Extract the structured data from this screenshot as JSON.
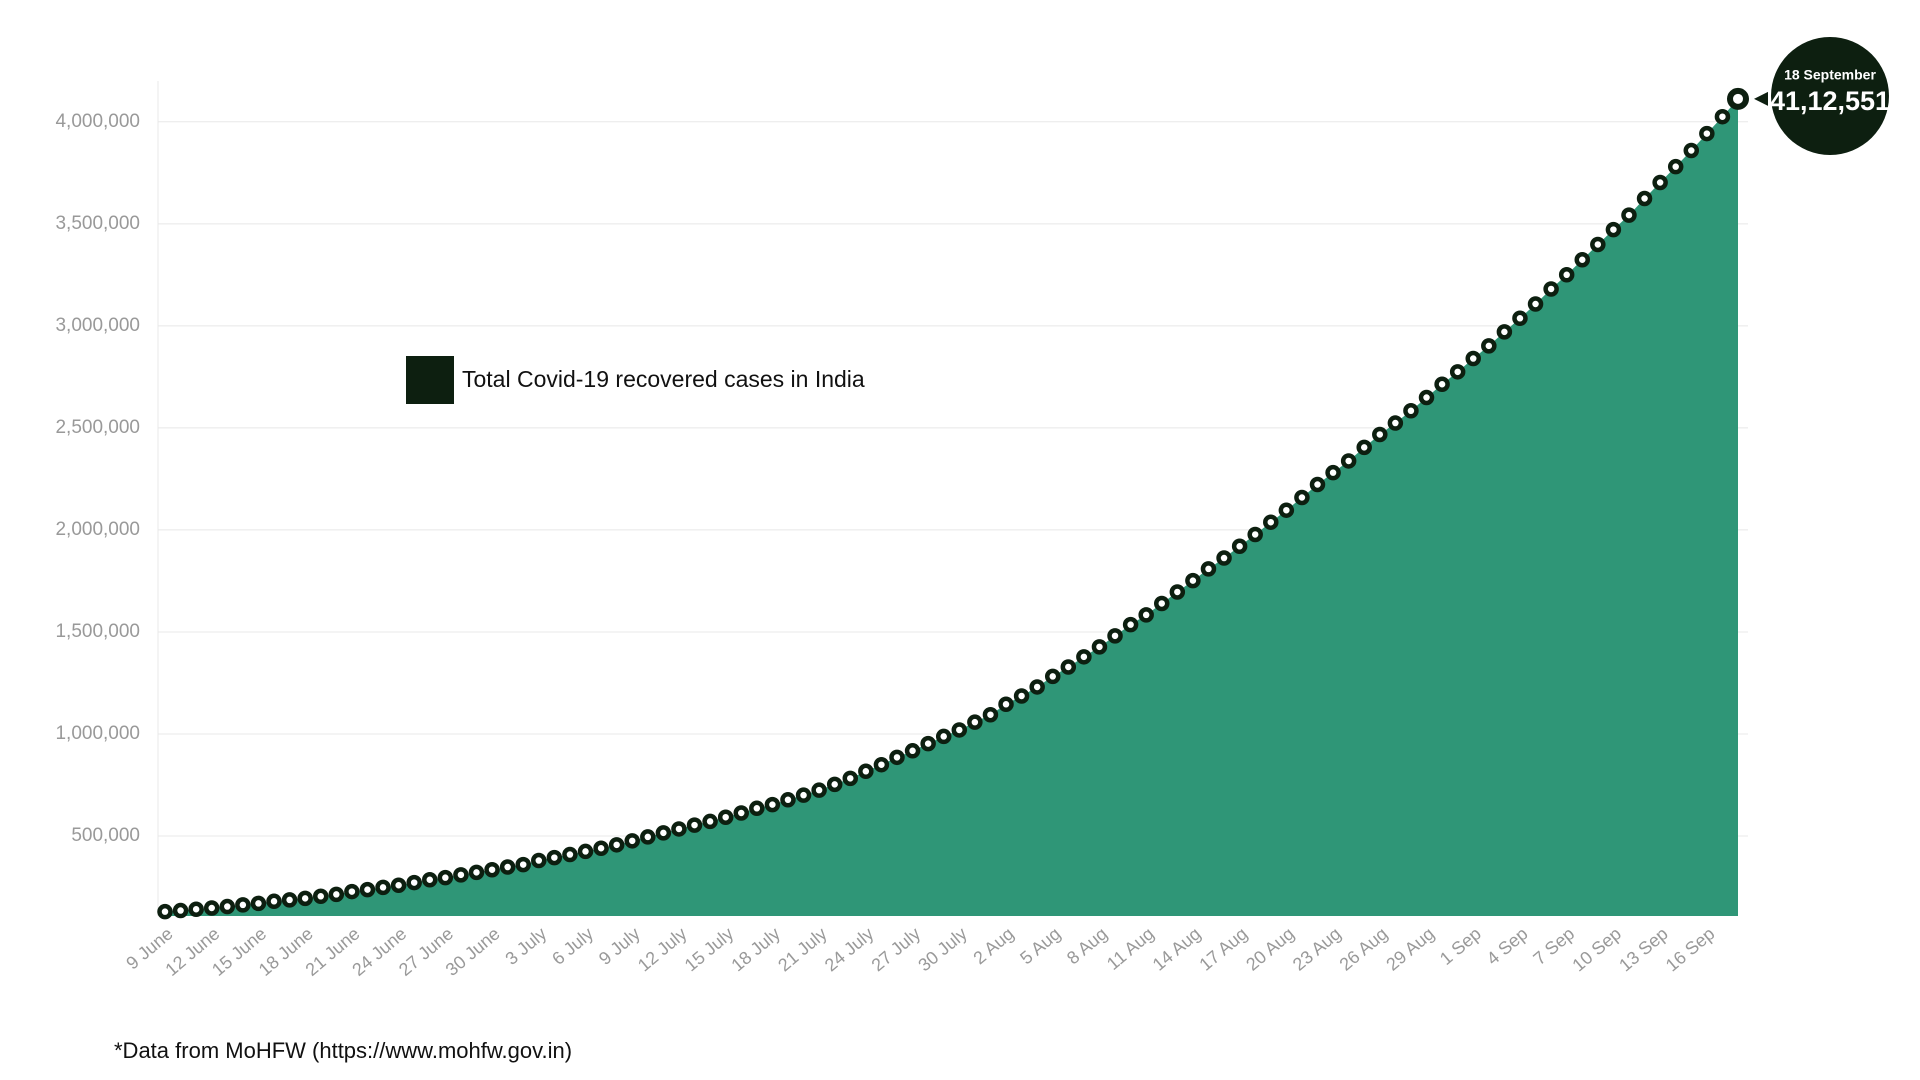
{
  "chart_data": {
    "type": "area",
    "categories": [
      "9 June",
      null,
      null,
      "12 June",
      null,
      null,
      "15 June",
      null,
      null,
      "18 June",
      null,
      null,
      "21 June",
      null,
      null,
      "24 June",
      null,
      null,
      "27 June",
      null,
      null,
      "30 June",
      null,
      null,
      "3 July",
      null,
      null,
      "6 July",
      null,
      null,
      "9 July",
      null,
      null,
      "12 July",
      null,
      null,
      "15 July",
      null,
      null,
      "18 July",
      null,
      null,
      "21 July",
      null,
      null,
      "24 July",
      null,
      null,
      "27 July",
      null,
      null,
      "30 July",
      null,
      null,
      "2 Aug",
      null,
      null,
      "5 Aug",
      null,
      null,
      "8 Aug",
      null,
      null,
      "11 Aug",
      null,
      null,
      "14 Aug",
      null,
      null,
      "17 Aug",
      null,
      null,
      "20 Aug",
      null,
      null,
      "23 Aug",
      null,
      null,
      "26 Aug",
      null,
      null,
      "29 Aug",
      null,
      null,
      "1 Sep",
      null,
      null,
      "4 Sep",
      null,
      null,
      "7 Sep",
      null,
      null,
      "10 Sep",
      null,
      null,
      "13 Sep",
      null,
      null,
      "16 Sep",
      null,
      null
    ],
    "series": [
      {
        "name": "Total Covid-19 recovered cases in India",
        "color": "#0d1f10",
        "fill_color": "#2f9677",
        "values": [
          129215,
          134670,
          141029,
          147195,
          154330,
          162379,
          169798,
          180013,
          186935,
          194324,
          204711,
          213831,
          227756,
          237196,
          248190,
          258685,
          271697,
          285637,
          295881,
          309713,
          321723,
          334822,
          347979,
          359860,
          379892,
          394227,
          409083,
          424433,
          439948,
          456831,
          476378,
          495513,
          515386,
          534621,
          553471,
          571460,
          592032,
          612815,
          635757,
          653751,
          677423,
          700087,
          724578,
          753050,
          782607,
          817209,
          849432,
          885577,
          917568,
          952743,
          988030,
          1019735,
          1057806,
          1094374,
          1145630,
          1186203,
          1230509,
          1282215,
          1328336,
          1378105,
          1427005,
          1480884,
          1535743,
          1583489,
          1639599,
          1695982,
          1751555,
          1808936,
          1862258,
          1919842,
          1977779,
          2037870,
          2096664,
          2158946,
          2222577,
          2280566,
          2338035,
          2404585,
          2467758,
          2523771,
          2583948,
          2648998,
          2713933,
          2774801,
          2839882,
          2901908,
          2970492,
          3037151,
          3107223,
          3180865,
          3250429,
          3323950,
          3398844,
          3471783,
          3542663,
          3624196,
          3702595,
          3780107,
          3859399,
          3942360,
          4025079,
          4112551
        ],
        "value_labels": [
          null,
          null,
          null,
          null,
          null,
          null,
          null,
          null,
          null,
          null,
          null,
          null,
          null,
          null,
          null,
          null,
          null,
          null,
          null,
          null,
          null,
          null,
          null,
          null,
          null,
          null,
          null,
          null,
          null,
          null,
          null,
          null,
          null,
          null,
          null,
          null,
          null,
          null,
          null,
          null,
          null,
          null,
          null,
          null,
          null,
          null,
          null,
          null,
          null,
          null,
          null,
          null,
          null,
          null,
          null,
          null,
          null,
          null,
          null,
          null,
          null,
          null,
          null,
          null,
          null,
          null,
          null,
          null,
          null,
          null,
          null,
          null,
          null,
          null,
          null,
          null,
          null,
          null,
          null,
          null,
          null,
          null,
          null,
          null,
          null,
          null,
          null,
          null,
          null,
          null,
          null,
          null,
          null,
          null,
          null,
          null,
          null,
          null,
          null,
          null,
          null,
          "41,12,551"
        ]
      }
    ],
    "annotation_title": "18 September",
    "ylim": [
      108000,
      4200000
    ],
    "yticks": [
      {
        "value": 500000,
        "label": "500,000"
      },
      {
        "value": 1000000,
        "label": "1,000,000"
      },
      {
        "value": 1500000,
        "label": "1,500,000"
      },
      {
        "value": 2000000,
        "label": "2,000,000"
      },
      {
        "value": 2500000,
        "label": "2,500,000"
      },
      {
        "value": 3000000,
        "label": "3,000,000"
      },
      {
        "value": 3500000,
        "label": "3,500,000"
      },
      {
        "value": 4000000,
        "label": "4,000,000"
      }
    ],
    "grid": true,
    "footnote": "*Data from MoHFW (https://www.mohfw.gov.in)"
  }
}
